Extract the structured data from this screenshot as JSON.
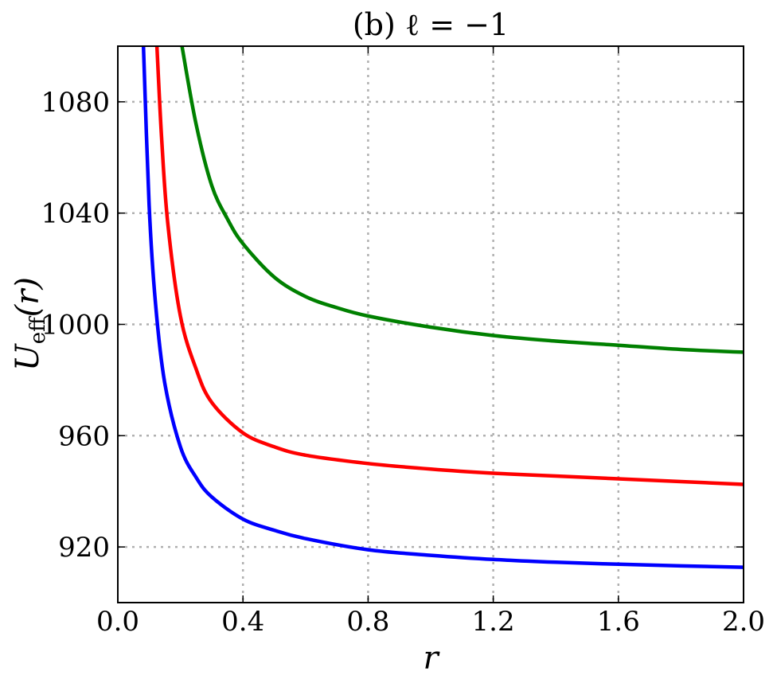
{
  "chart_data": {
    "type": "line",
    "title": "(b) ℓ = −1",
    "xlabel": "r",
    "ylabel": {
      "main": "U",
      "subscript": "eff",
      "argument": "(r)"
    },
    "xlim": [
      0.0,
      2.0
    ],
    "ylim": [
      900,
      1100
    ],
    "xticks": [
      0.0,
      0.4,
      0.8,
      1.2,
      1.6,
      2.0
    ],
    "xtick_labels": [
      "0.0",
      "0.4",
      "0.8",
      "1.2",
      "1.6",
      "2.0"
    ],
    "yticks": [
      920,
      960,
      1000,
      1040,
      1080
    ],
    "ytick_labels": [
      "920",
      "960",
      "1000",
      "1040",
      "1080"
    ],
    "grid": true,
    "legend": "none",
    "series": [
      {
        "color": "#0000ff",
        "x": [
          0.082,
          0.1,
          0.12,
          0.15,
          0.2,
          0.25,
          0.3,
          0.4,
          0.5,
          0.6,
          0.8,
          1.0,
          1.2,
          1.4,
          1.6,
          1.8,
          2.0
        ],
        "y": [
          1100,
          1043,
          1008,
          979,
          956,
          945,
          938,
          930,
          926,
          923,
          919,
          917,
          915.5,
          914.5,
          913.8,
          913.2,
          912.7
        ]
      },
      {
        "color": "#ff0000",
        "x": [
          0.125,
          0.14,
          0.16,
          0.2,
          0.25,
          0.3,
          0.4,
          0.5,
          0.6,
          0.8,
          1.0,
          1.2,
          1.4,
          1.6,
          1.8,
          2.0
        ],
        "y": [
          1100,
          1067,
          1036,
          1003,
          984,
          972,
          961,
          956,
          953,
          950,
          948,
          946.5,
          945.5,
          944.5,
          943.5,
          942.5
        ]
      },
      {
        "color": "#008000",
        "x": [
          0.205,
          0.25,
          0.3,
          0.35,
          0.4,
          0.5,
          0.6,
          0.7,
          0.8,
          1.0,
          1.2,
          1.4,
          1.6,
          1.8,
          2.0
        ],
        "y": [
          1100,
          1072,
          1050,
          1038,
          1029,
          1017,
          1010,
          1006,
          1003,
          999,
          996,
          994,
          992.5,
          991,
          990
        ]
      }
    ]
  }
}
